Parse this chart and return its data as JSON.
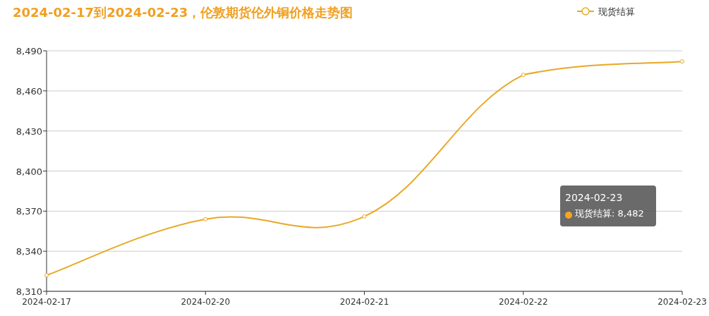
{
  "chart_data": {
    "type": "line",
    "title": "2024-02-17到2024-02-23，伦敦期货伦外铜价格走势图",
    "categories": [
      "2024-02-17",
      "2024-02-20",
      "2024-02-21",
      "2024-02-22",
      "2024-02-23"
    ],
    "series": [
      {
        "name": "现货结算",
        "color": "#e8a824",
        "values": [
          8322,
          8364,
          8366,
          8472,
          8482
        ]
      }
    ],
    "ylim": [
      8310,
      8490
    ],
    "yticks": [
      {
        "value": 8310,
        "label": "8,310"
      },
      {
        "value": 8340,
        "label": "8,340"
      },
      {
        "value": 8370,
        "label": "8,370"
      },
      {
        "value": 8400,
        "label": "8,400"
      },
      {
        "value": 8430,
        "label": "8,430"
      },
      {
        "value": 8460,
        "label": "8,460"
      },
      {
        "value": 8490,
        "label": "8,490"
      }
    ],
    "grid": "y",
    "legend": "top right",
    "marker": "circle",
    "line_style": "solid",
    "annotations": [
      "2024-02-23\n现货结算: 8,482"
    ]
  }
}
